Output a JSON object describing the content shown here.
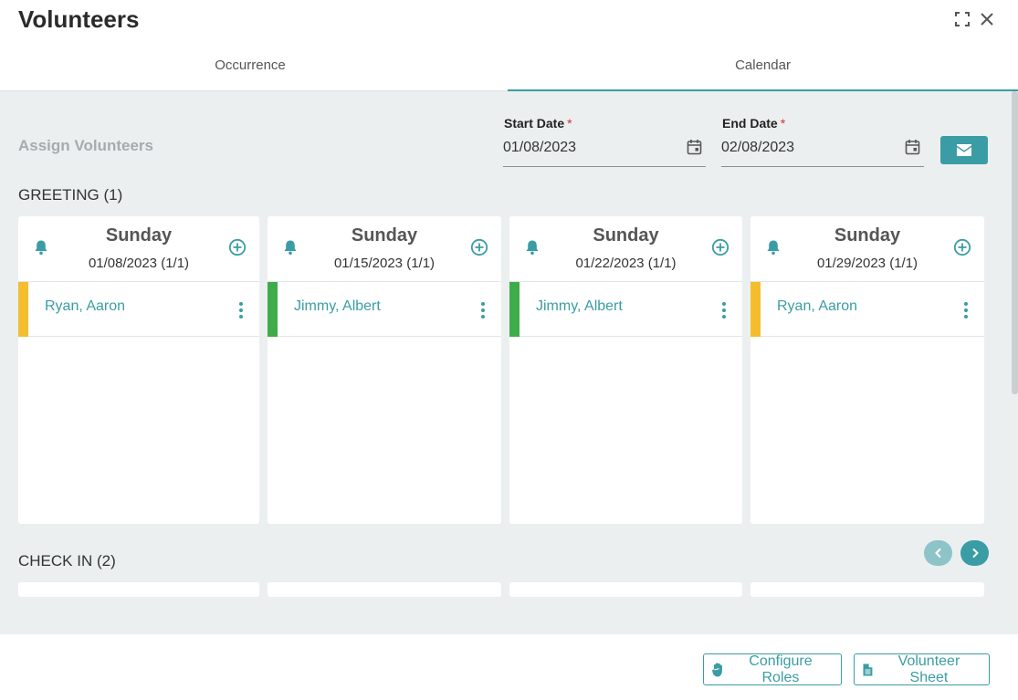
{
  "header": {
    "title": "Volunteers",
    "icons": [
      "expand-icon",
      "close-icon"
    ]
  },
  "tabs": [
    {
      "label": "Occurrence",
      "active": false
    },
    {
      "label": "Calendar",
      "active": true
    }
  ],
  "toolbar": {
    "assign_label": "Assign Volunteers",
    "start_date": {
      "label": "Start Date",
      "required": "*",
      "value": "01/08/2023"
    },
    "end_date": {
      "label": "End Date",
      "required": "*",
      "value": "02/08/2023"
    },
    "mail_icon": "envelope-icon"
  },
  "sections": [
    {
      "title": "GREETING (1)",
      "cards": [
        {
          "day": "Sunday",
          "date": "01/08/2023 (1/1)",
          "volunteers": [
            {
              "name": "Ryan, Aaron",
              "status_color": "#f4bd2d"
            }
          ]
        },
        {
          "day": "Sunday",
          "date": "01/15/2023 (1/1)",
          "volunteers": [
            {
              "name": "Jimmy, Albert",
              "status_color": "#3fac4a"
            }
          ]
        },
        {
          "day": "Sunday",
          "date": "01/22/2023 (1/1)",
          "volunteers": [
            {
              "name": "Jimmy, Albert",
              "status_color": "#3fac4a"
            }
          ]
        },
        {
          "day": "Sunday",
          "date": "01/29/2023 (1/1)",
          "volunteers": [
            {
              "name": "Ryan, Aaron",
              "status_color": "#f4bd2d"
            }
          ]
        }
      ]
    },
    {
      "title": "CHECK IN (2)"
    }
  ],
  "footer": {
    "configure_roles": "Configure Roles",
    "volunteer_sheet": "Volunteer Sheet"
  },
  "colors": {
    "accent": "#3a9da5",
    "background": "#ebeff0"
  }
}
